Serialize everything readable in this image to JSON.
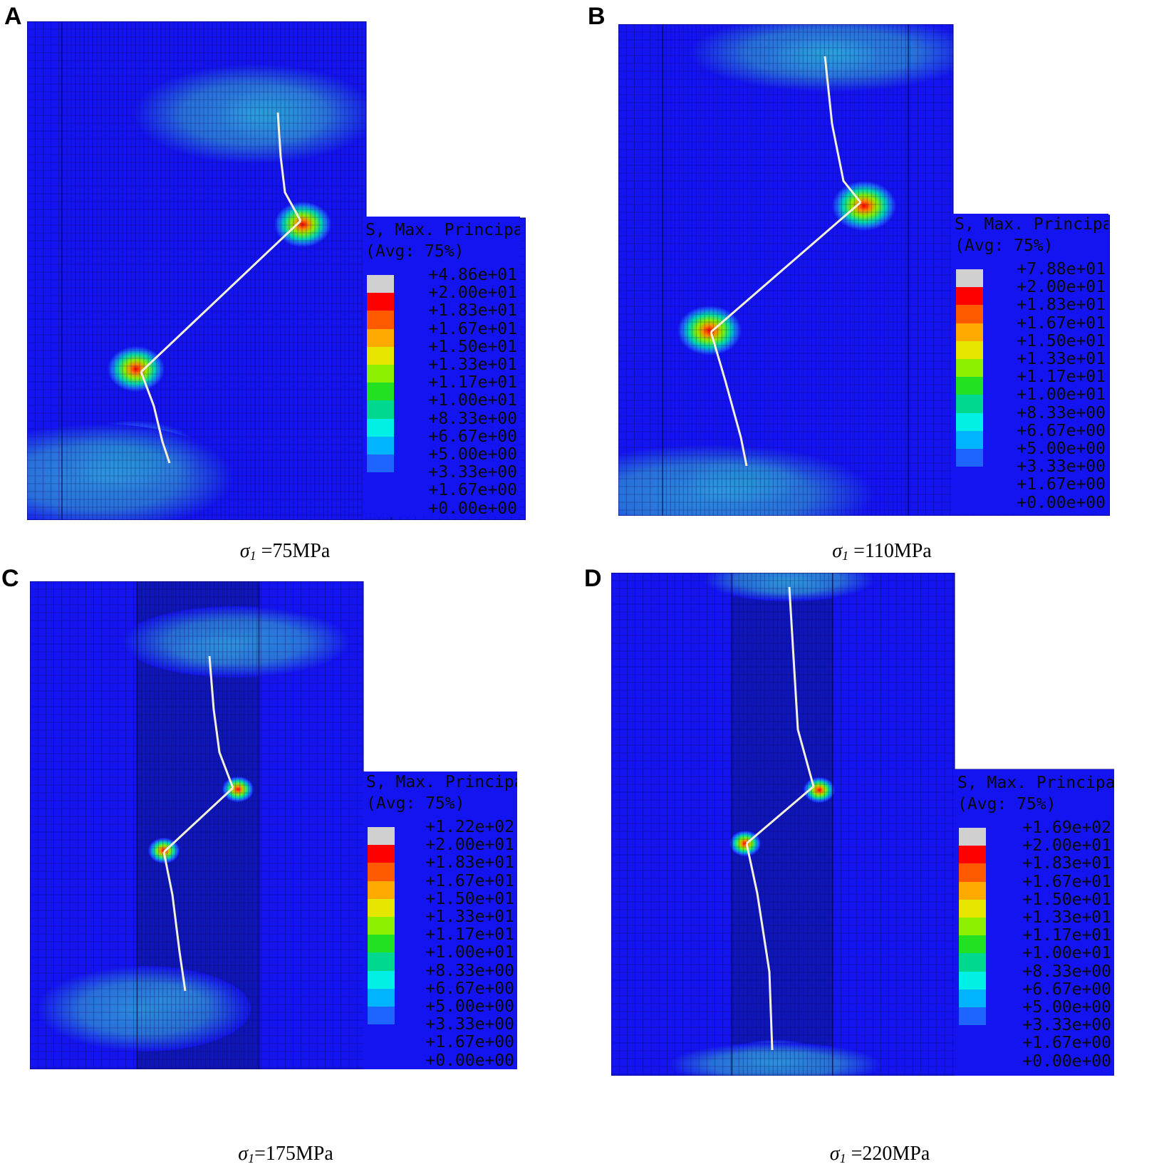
{
  "colors": {
    "mesh_blue": "#1414f0",
    "mesh_dark_band": "#0f16b8",
    "mesh_line": "#0a0a55",
    "crack": "#f2f0dc",
    "contour": [
      "#d0d0d0",
      "#ff0000",
      "#ff5a00",
      "#ffaa00",
      "#e6e600",
      "#8cf000",
      "#22e022",
      "#00d890",
      "#00f0e6",
      "#00b4ff",
      "#1e64ff",
      "#1414f0"
    ]
  },
  "legend": {
    "title_line1": "S, Max. Principal",
    "title_line2": "(Avg: 75%)",
    "shared_labels": [
      "+2.00e+01",
      "+1.83e+01",
      "+1.67e+01",
      "+1.50e+01",
      "+1.33e+01",
      "+1.17e+01",
      "+1.00e+01",
      "+8.33e+00",
      "+6.67e+00",
      "+5.00e+00",
      "+3.33e+00",
      "+1.67e+00",
      "+0.00e+00"
    ]
  },
  "panels": [
    {
      "letter": "A",
      "legend_max": "+4.86e+01",
      "caption_symbol": "σ",
      "caption_sub": "1",
      "caption_value": " =75MPa"
    },
    {
      "letter": "B",
      "legend_max": "+7.88e+01",
      "caption_symbol": "σ",
      "caption_sub": "1",
      "caption_value": " =110MPa"
    },
    {
      "letter": "C",
      "legend_max": "+1.22e+02",
      "caption_symbol": "σ",
      "caption_sub": "1",
      "caption_value": "=175MPa"
    },
    {
      "letter": "D",
      "legend_max": "+1.69e+02",
      "caption_symbol": "σ",
      "caption_sub": "1",
      "caption_value": " =220MPa"
    }
  ]
}
